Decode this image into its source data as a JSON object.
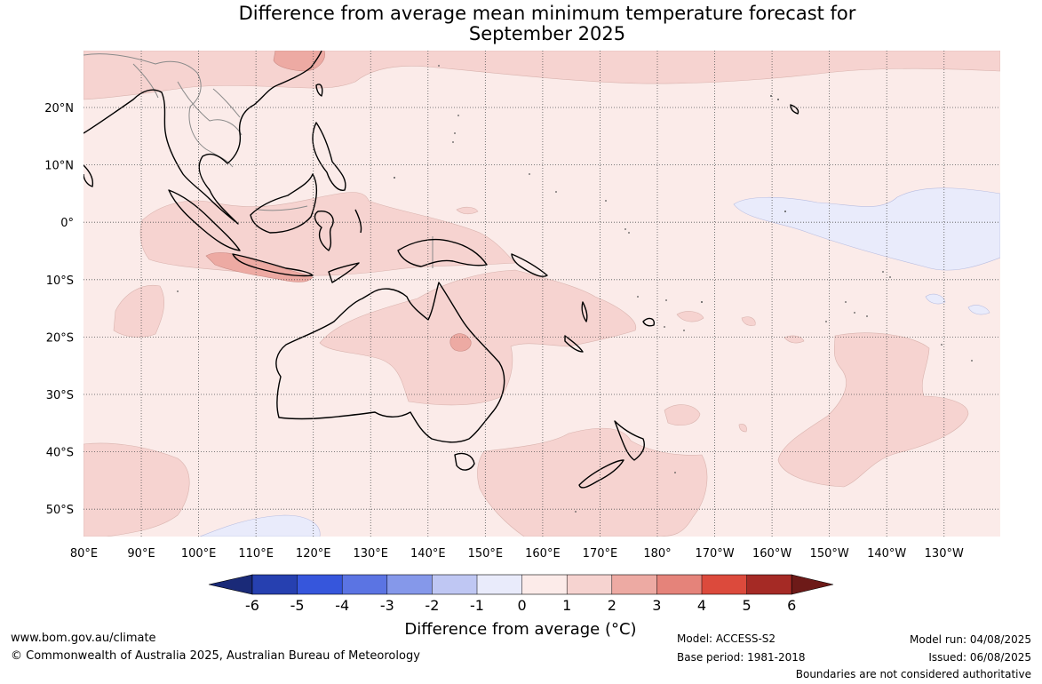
{
  "title": {
    "line1": "Difference from average mean minimum temperature forecast for",
    "line2": "September 2025"
  },
  "map": {
    "lon_ticks": [
      "80°E",
      "90°E",
      "100°E",
      "110°E",
      "120°E",
      "130°E",
      "140°E",
      "150°E",
      "160°E",
      "170°E",
      "180°",
      "170°W",
      "160°W",
      "150°W",
      "140°W",
      "130°W"
    ],
    "lat_ticks": [
      "20°N",
      "10°N",
      "0°",
      "10°S",
      "20°S",
      "30°S",
      "40°S",
      "50°S"
    ],
    "ocean_background_color": "#fbebe9",
    "coast_color": "#000000",
    "land_fill": "none"
  },
  "colorbar": {
    "label": "Difference from average (°C)",
    "ticks": [
      "-6",
      "-5",
      "-4",
      "-3",
      "-2",
      "-1",
      "0",
      "1",
      "2",
      "3",
      "4",
      "5",
      "6"
    ],
    "colors": [
      "#1a2a78",
      "#2640b0",
      "#3656dc",
      "#5b74e3",
      "#8598ea",
      "#bfc7f3",
      "#e9ebfb",
      "#fcebe9",
      "#f6d3d0",
      "#edaaa3",
      "#e5837a",
      "#dc4a3c",
      "#a52a25",
      "#6d1a18"
    ]
  },
  "footer": {
    "website": "www.bom.gov.au/climate",
    "copyright": "© Commonwealth of Australia 2025, Australian Bureau of Meteorology",
    "model": "Model: ACCESS-S2",
    "base_period": "Base period: 1981-2018",
    "model_run": "Model run: 04/08/2025",
    "issued": "Issued: 06/08/2025",
    "disclaimer": "Boundaries are not considered authoritative"
  }
}
